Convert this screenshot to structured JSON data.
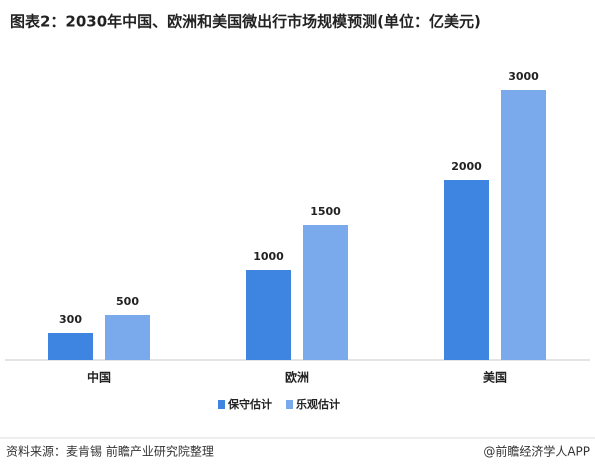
{
  "chart_data": {
    "type": "bar",
    "title": "图表2：2030年中国、欧洲和美国微出行市场规模预测(单位：亿美元)",
    "categories": [
      "中国",
      "欧洲",
      "美国"
    ],
    "series": [
      {
        "name": "保守估计",
        "color": "#3d85e0",
        "values": [
          300,
          1000,
          2000
        ]
      },
      {
        "name": "乐观估计",
        "color": "#7aaaeb",
        "values": [
          500,
          1500,
          3000
        ]
      }
    ],
    "source": "资料来源：麦肯锡 前瞻产业研究院整理",
    "credit": "@前瞻经济学人APP"
  }
}
